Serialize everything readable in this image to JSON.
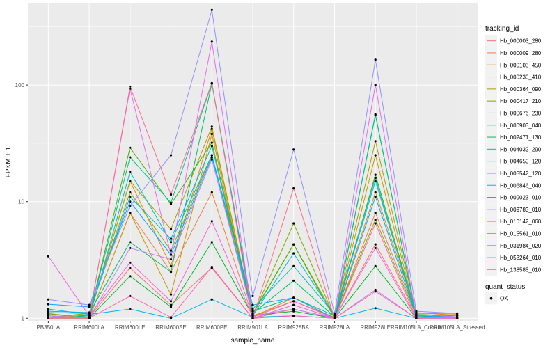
{
  "chart_data": {
    "type": "line",
    "xlabel": "sample_name",
    "ylabel": "FPKM + 1",
    "y_scale": "log10",
    "y_ticks": [
      1,
      10,
      100
    ],
    "ylim": [
      0.95,
      500
    ],
    "grid": true,
    "legend_placement": "right",
    "categories": [
      "PB350LA",
      "RRIM600LA",
      "RRIM600LE",
      "RRIM600SE",
      "RRIM600PE",
      "RRIM901LA",
      "RRIM928BA",
      "RRIM928LA",
      "RRIM928LE",
      "RRIM105LA_Control",
      "RRIM105LA_Stressed"
    ],
    "colors": [
      "#f8766d",
      "#ef7f47",
      "#e38900",
      "#c99600",
      "#a8a200",
      "#7eab00",
      "#3bb400",
      "#00b82d",
      "#00bc69",
      "#00c094",
      "#00bfbb",
      "#00bcd8",
      "#00b4ef",
      "#00a7ff",
      "#9590ff",
      "#c77cff",
      "#e76bf3",
      "#fa62db",
      "#ff63b6",
      "#ff6c91"
    ],
    "series": [
      {
        "name": "Hb_000003_280",
        "values": [
          1.05,
          1.02,
          2.7,
          1.3,
          2.7,
          1.0,
          1.2,
          1.0,
          4.3,
          1.03,
          1.0
        ]
      },
      {
        "name": "Hb_000009_280",
        "values": [
          1.1,
          1.0,
          8.0,
          2.5,
          12.0,
          1.02,
          1.5,
          1.0,
          8.0,
          1.08,
          1.05
        ]
      },
      {
        "name": "Hb_000103_450",
        "values": [
          1.0,
          1.05,
          15.0,
          2.8,
          42.0,
          1.05,
          1.4,
          1.02,
          12.0,
          1.12,
          1.06
        ]
      },
      {
        "name": "Hb_000230_410",
        "values": [
          1.05,
          1.0,
          8.0,
          1.6,
          38.0,
          1.0,
          1.3,
          1.0,
          25.0,
          1.05,
          1.08
        ]
      },
      {
        "name": "Hb_000364_090",
        "values": [
          1.0,
          1.02,
          15.0,
          5.8,
          44.0,
          1.08,
          4.3,
          1.05,
          33.0,
          1.1,
          1.1
        ]
      },
      {
        "name": "Hb_000417_210",
        "values": [
          1.02,
          1.1,
          12.0,
          3.8,
          25.0,
          1.05,
          6.5,
          1.02,
          7.0,
          1.05,
          1.0
        ]
      },
      {
        "name": "Hb_000676_230",
        "values": [
          1.08,
          1.05,
          29.0,
          9.5,
          32.0,
          1.1,
          4.3,
          1.0,
          17.0,
          1.08,
          1.05
        ]
      },
      {
        "name": "Hb_000903_040",
        "values": [
          1.0,
          1.0,
          2.3,
          1.25,
          4.5,
          1.05,
          1.15,
          1.0,
          2.8,
          1.0,
          1.02
        ]
      },
      {
        "name": "Hb_002471_130",
        "values": [
          1.12,
          1.1,
          4.5,
          2.5,
          103.0,
          1.1,
          2.1,
          1.03,
          55.0,
          1.05,
          1.0
        ]
      },
      {
        "name": "Hb_004032_290",
        "values": [
          1.0,
          1.05,
          24.0,
          9.8,
          103.0,
          1.15,
          1.5,
          1.05,
          56.0,
          1.03,
          1.0
        ]
      },
      {
        "name": "Hb_004650_120",
        "values": [
          1.05,
          1.0,
          18.0,
          4.5,
          25.0,
          1.2,
          2.8,
          1.08,
          16.0,
          1.02,
          1.05
        ]
      },
      {
        "name": "Hb_005542_120",
        "values": [
          1.15,
          1.12,
          11.0,
          4.8,
          30.0,
          1.05,
          3.6,
          1.05,
          15.0,
          1.08,
          1.02
        ]
      },
      {
        "name": "Hb_006846_040",
        "values": [
          1.2,
          1.08,
          1.2,
          1.0,
          1.45,
          1.02,
          1.05,
          1.0,
          1.22,
          1.0,
          1.0
        ]
      },
      {
        "name": "Hb_009023_010",
        "values": [
          1.32,
          1.25,
          10.0,
          3.5,
          24.0,
          1.3,
          1.5,
          1.0,
          11.0,
          1.05,
          1.02
        ]
      },
      {
        "name": "Hb_009783_010",
        "values": [
          1.45,
          1.3,
          9.2,
          25.0,
          440.0,
          1.55,
          28.0,
          1.1,
          165.0,
          1.15,
          1.1
        ]
      },
      {
        "name": "Hb_010142_060",
        "values": [
          1.05,
          1.0,
          4.0,
          3.2,
          23.0,
          1.05,
          1.2,
          1.0,
          1.75,
          1.0,
          1.05
        ]
      },
      {
        "name": "Hb_015561_010",
        "values": [
          1.0,
          1.02,
          93.0,
          3.5,
          235.0,
          1.0,
          1.3,
          1.0,
          100.0,
          1.02,
          1.0
        ]
      },
      {
        "name": "Hb_031984_020",
        "values": [
          3.4,
          1.05,
          3.0,
          1.4,
          6.8,
          1.02,
          1.4,
          1.0,
          4.0,
          1.0,
          1.02
        ]
      },
      {
        "name": "Hb_053264_010",
        "values": [
          1.02,
          1.0,
          1.55,
          1.02,
          2.75,
          1.0,
          1.05,
          1.0,
          1.7,
          1.0,
          1.0
        ]
      },
      {
        "name": "Hb_138585_010",
        "values": [
          1.0,
          1.0,
          97.0,
          11.5,
          104.0,
          1.0,
          13.0,
          1.0,
          6.5,
          1.0,
          1.02
        ]
      }
    ],
    "legend": {
      "title": "tracking_id",
      "entries": [
        "Hb_000003_280",
        "Hb_000009_280",
        "Hb_000103_450",
        "Hb_000230_410",
        "Hb_000364_090",
        "Hb_000417_210",
        "Hb_000676_230",
        "Hb_000903_040",
        "Hb_002471_130",
        "Hb_004032_290",
        "Hb_004650_120",
        "Hb_005542_120",
        "Hb_006846_040",
        "Hb_009023_010",
        "Hb_009783_010",
        "Hb_010142_060",
        "Hb_015561_010",
        "Hb_031984_020",
        "Hb_053264_010",
        "Hb_138585_010"
      ]
    },
    "shape_legend": {
      "title": "quant_status",
      "entries": [
        "OK"
      ]
    },
    "point_color": "#000000",
    "panel_color": "#ebebeb",
    "grid_color": "#ffffff"
  }
}
